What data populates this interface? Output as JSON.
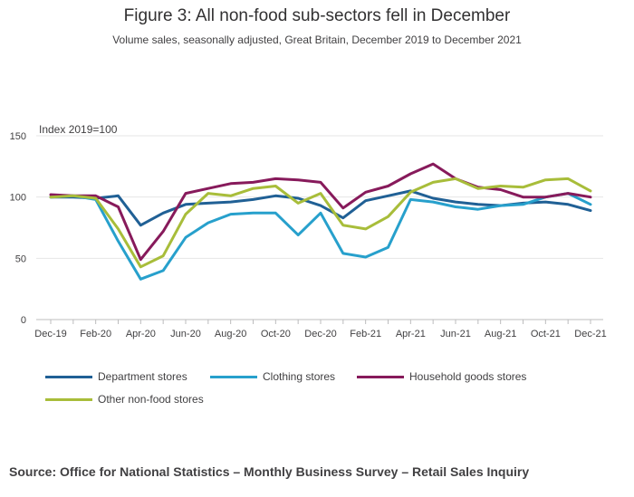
{
  "chart_data": {
    "type": "line",
    "title": "Figure 3: All non-food sub-sectors fell in December",
    "subtitle": "Volume sales, seasonally adjusted, Great Britain, December 2019 to December 2021",
    "ylabel": "Index 2019=100",
    "xlabel": "",
    "ylim": [
      0,
      150
    ],
    "yticks": [
      0,
      50,
      100,
      150
    ],
    "grid": true,
    "legend_position": "bottom",
    "x": [
      "Dec-19",
      "Jan-20",
      "Feb-20",
      "Mar-20",
      "Apr-20",
      "May-20",
      "Jun-20",
      "Jul-20",
      "Aug-20",
      "Sep-20",
      "Oct-20",
      "Nov-20",
      "Dec-20",
      "Jan-21",
      "Feb-21",
      "Mar-21",
      "Apr-21",
      "May-21",
      "Jun-21",
      "Jul-21",
      "Aug-21",
      "Sep-21",
      "Oct-21",
      "Nov-21",
      "Dec-21"
    ],
    "xtick_labels": [
      "Dec-19",
      "Feb-20",
      "Apr-20",
      "Jun-20",
      "Aug-20",
      "Oct-20",
      "Dec-20",
      "Feb-21",
      "Apr-21",
      "Jun-21",
      "Aug-21",
      "Oct-21",
      "Dec-21"
    ],
    "series": [
      {
        "name": "Department stores",
        "color": "#206095",
        "values": [
          100,
          100,
          99,
          101,
          77,
          87,
          94,
          95,
          96,
          98,
          101,
          99,
          93,
          83,
          97,
          101,
          105,
          99,
          96,
          94,
          93,
          95,
          96,
          94,
          89
        ]
      },
      {
        "name": "Clothing stores",
        "color": "#27a0cc",
        "values": [
          100,
          101,
          98,
          64,
          33,
          40,
          67,
          79,
          86,
          87,
          87,
          69,
          87,
          54,
          51,
          59,
          98,
          96,
          92,
          90,
          93,
          94,
          100,
          103,
          94
        ]
      },
      {
        "name": "Household goods stores",
        "color": "#871a5b",
        "values": [
          102,
          101,
          101,
          92,
          49,
          72,
          103,
          107,
          111,
          112,
          115,
          114,
          112,
          91,
          104,
          109,
          119,
          127,
          115,
          108,
          106,
          100,
          100,
          103,
          100
        ]
      },
      {
        "name": "Other non-food stores",
        "color": "#a8bd3a",
        "values": [
          100,
          101,
          99,
          74,
          43,
          52,
          86,
          103,
          101,
          107,
          109,
          95,
          103,
          77,
          74,
          84,
          104,
          112,
          115,
          107,
          109,
          108,
          114,
          115,
          105
        ]
      }
    ]
  },
  "source": "Source: Office for National Statistics – Monthly Business Survey – Retail Sales Inquiry"
}
